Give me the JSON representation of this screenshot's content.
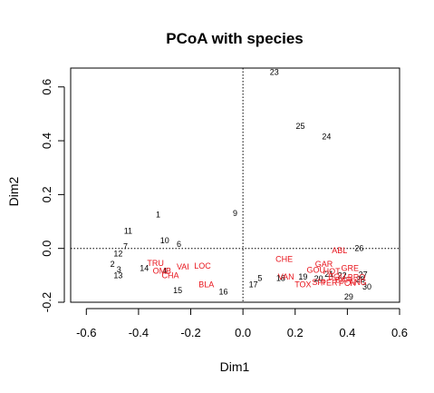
{
  "chart_data": {
    "type": "scatter",
    "title": "PCoA with species",
    "xlabel": "Dim1",
    "ylabel": "Dim2",
    "xlim": [
      -0.66,
      0.6
    ],
    "ylim": [
      -0.2,
      0.67
    ],
    "xticks": [
      "-0.6",
      "-0.4",
      "-0.2",
      "0.0",
      "0.2",
      "0.4",
      "0.6"
    ],
    "xtick_values": [
      -0.6,
      -0.4,
      -0.2,
      0.0,
      0.2,
      0.4,
      0.6
    ],
    "yticks": [
      "-0.2",
      "0.0",
      "0.2",
      "0.4",
      "0.6"
    ],
    "ytick_values": [
      -0.2,
      0.0,
      0.2,
      0.4,
      0.6
    ],
    "reference_lines": {
      "x": 0,
      "y": 0,
      "style": "dotted"
    },
    "grid": false,
    "series": [
      {
        "color": "#000000",
        "points": [
          {
            "label": "1",
            "x": -0.325,
            "y": 0.125
          },
          {
            "label": "2",
            "x": -0.5,
            "y": -0.058
          },
          {
            "label": "3",
            "x": -0.475,
            "y": -0.078
          },
          {
            "label": "4",
            "x": -0.3,
            "y": -0.083
          },
          {
            "label": "5",
            "x": 0.065,
            "y": -0.11
          },
          {
            "label": "6",
            "x": -0.245,
            "y": 0.015
          },
          {
            "label": "7",
            "x": -0.45,
            "y": 0.008
          },
          {
            "label": "9",
            "x": -0.03,
            "y": 0.13
          },
          {
            "label": "10",
            "x": -0.3,
            "y": 0.03
          },
          {
            "label": "11",
            "x": -0.44,
            "y": 0.065
          },
          {
            "label": "12",
            "x": -0.478,
            "y": -0.02
          },
          {
            "label": "13",
            "x": -0.478,
            "y": -0.1
          },
          {
            "label": "14",
            "x": -0.378,
            "y": -0.074
          },
          {
            "label": "15",
            "x": -0.25,
            "y": -0.157
          },
          {
            "label": "16",
            "x": -0.075,
            "y": -0.162
          },
          {
            "label": "17",
            "x": 0.04,
            "y": -0.135
          },
          {
            "label": "18",
            "x": 0.145,
            "y": -0.11
          },
          {
            "label": "19",
            "x": 0.23,
            "y": -0.105
          },
          {
            "label": "20",
            "x": 0.29,
            "y": -0.112
          },
          {
            "label": "21",
            "x": 0.33,
            "y": -0.095
          },
          {
            "label": "22",
            "x": 0.38,
            "y": -0.1
          },
          {
            "label": "23",
            "x": 0.12,
            "y": 0.655
          },
          {
            "label": "24",
            "x": 0.32,
            "y": 0.415
          },
          {
            "label": "25",
            "x": 0.22,
            "y": 0.455
          },
          {
            "label": "26",
            "x": 0.445,
            "y": 0.0
          },
          {
            "label": "27",
            "x": 0.46,
            "y": -0.097
          },
          {
            "label": "28",
            "x": 0.45,
            "y": -0.115
          },
          {
            "label": "29",
            "x": 0.405,
            "y": -0.18
          },
          {
            "label": "30",
            "x": 0.475,
            "y": -0.142
          }
        ]
      },
      {
        "color": "#e8141c",
        "points": [
          {
            "label": "TRU",
            "x": -0.335,
            "y": -0.055
          },
          {
            "label": "OMB",
            "x": -0.31,
            "y": -0.083
          },
          {
            "label": "VAI",
            "x": -0.23,
            "y": -0.068
          },
          {
            "label": "LOC",
            "x": -0.155,
            "y": -0.065
          },
          {
            "label": "CHA",
            "x": -0.278,
            "y": -0.1
          },
          {
            "label": "BLA",
            "x": -0.14,
            "y": -0.135
          },
          {
            "label": "CHE",
            "x": 0.158,
            "y": -0.04
          },
          {
            "label": "ABL",
            "x": 0.37,
            "y": -0.007
          },
          {
            "label": "GAR",
            "x": 0.31,
            "y": -0.058
          },
          {
            "label": "GRE",
            "x": 0.41,
            "y": -0.073
          },
          {
            "label": "GOU",
            "x": 0.28,
            "y": -0.08
          },
          {
            "label": "HOT",
            "x": 0.34,
            "y": -0.085
          },
          {
            "label": "VAN",
            "x": 0.165,
            "y": -0.105
          },
          {
            "label": "TOX",
            "x": 0.23,
            "y": -0.135
          },
          {
            "label": "SPI",
            "x": 0.29,
            "y": -0.125
          },
          {
            "label": "PER",
            "x": 0.33,
            "y": -0.128
          },
          {
            "label": "BAR",
            "x": 0.385,
            "y": -0.118
          },
          {
            "label": "BOU",
            "x": 0.36,
            "y": -0.105
          },
          {
            "label": "BRO",
            "x": 0.435,
            "y": -0.108
          },
          {
            "label": "PCH",
            "x": 0.4,
            "y": -0.13
          },
          {
            "label": "ANG",
            "x": 0.44,
            "y": -0.125
          }
        ]
      }
    ]
  }
}
